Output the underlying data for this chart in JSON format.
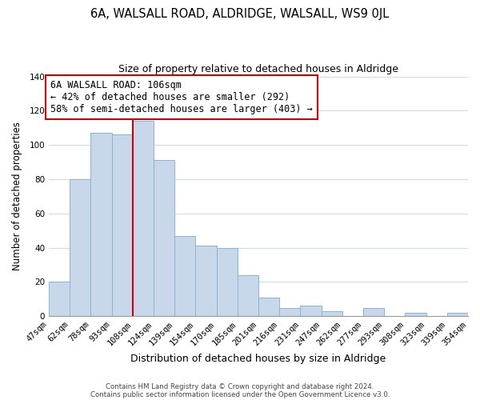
{
  "title": "6A, WALSALL ROAD, ALDRIDGE, WALSALL, WS9 0JL",
  "subtitle": "Size of property relative to detached houses in Aldridge",
  "xlabel": "Distribution of detached houses by size in Aldridge",
  "ylabel": "Number of detached properties",
  "bar_values": [
    20,
    80,
    107,
    106,
    114,
    91,
    47,
    41,
    40,
    24,
    11,
    5,
    6,
    3,
    0,
    5,
    0,
    2,
    0,
    2
  ],
  "bar_labels": [
    "47sqm",
    "62sqm",
    "78sqm",
    "93sqm",
    "108sqm",
    "124sqm",
    "139sqm",
    "154sqm",
    "170sqm",
    "185sqm",
    "201sqm",
    "216sqm",
    "231sqm",
    "247sqm",
    "262sqm",
    "277sqm",
    "293sqm",
    "308sqm",
    "323sqm",
    "339sqm",
    "354sqm"
  ],
  "bar_color": "#c8d8ea",
  "bar_edge_color": "#8ab4d4",
  "vline_x_index": 4,
  "vline_color": "#cc0000",
  "annotation_line1": "6A WALSALL ROAD: 106sqm",
  "annotation_line2": "← 42% of detached houses are smaller (292)",
  "annotation_line3": "58% of semi-detached houses are larger (403) →",
  "annotation_box_color": "#ffffff",
  "annotation_box_edge": "#cc0000",
  "ylim": [
    0,
    140
  ],
  "yticks": [
    0,
    20,
    40,
    60,
    80,
    100,
    120,
    140
  ],
  "footer1": "Contains HM Land Registry data © Crown copyright and database right 2024.",
  "footer2": "Contains public sector information licensed under the Open Government Licence v3.0.",
  "background_color": "#ffffff",
  "grid_color": "#ccdce8",
  "title_fontsize": 10.5,
  "subtitle_fontsize": 9,
  "tick_fontsize": 7.5,
  "ylabel_fontsize": 8.5,
  "xlabel_fontsize": 9,
  "annotation_fontsize": 8.5
}
